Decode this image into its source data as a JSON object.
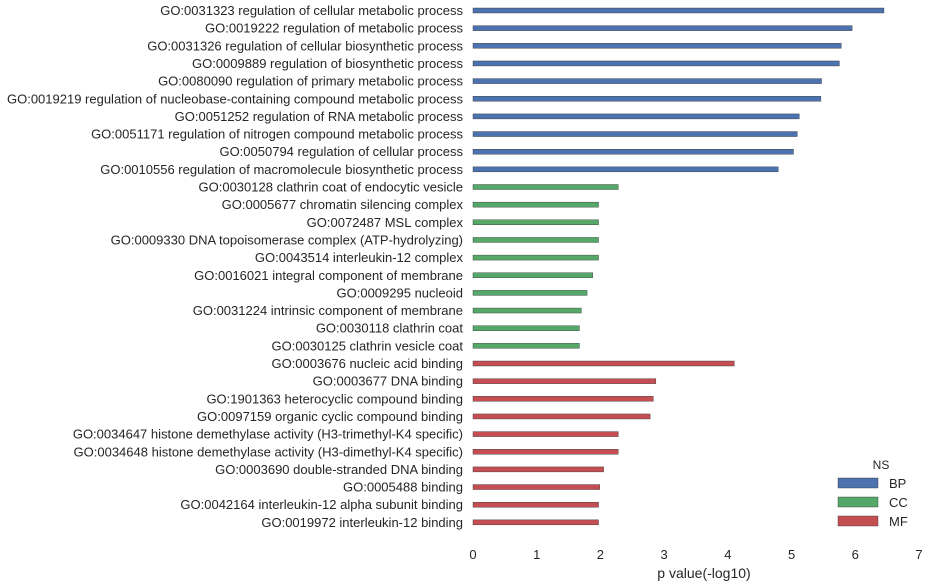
{
  "chart_data": {
    "type": "bar",
    "orientation": "horizontal",
    "xlabel": "p value(-log10)",
    "xlim": [
      0,
      7
    ],
    "xticks": [
      "0",
      "1",
      "2",
      "3",
      "4",
      "5",
      "6",
      "7"
    ],
    "grid": false,
    "legend": {
      "title": "NS",
      "placement": "lower-right",
      "entries": [
        {
          "name": "BP",
          "color": "#4c72b0"
        },
        {
          "name": "CC",
          "color": "#55a868"
        },
        {
          "name": "MF",
          "color": "#c44e52"
        }
      ]
    },
    "categories": [
      {
        "label": "GO:0031323 regulation of cellular metabolic process",
        "value": 6.45,
        "ns": "BP"
      },
      {
        "label": "GO:0019222 regulation of metabolic process",
        "value": 5.95,
        "ns": "BP"
      },
      {
        "label": "GO:0031326 regulation of cellular biosynthetic process",
        "value": 5.78,
        "ns": "BP"
      },
      {
        "label": "GO:0009889 regulation of biosynthetic process",
        "value": 5.75,
        "ns": "BP"
      },
      {
        "label": "GO:0080090 regulation of primary metabolic process",
        "value": 5.47,
        "ns": "BP"
      },
      {
        "label": "GO:0019219 regulation of nucleobase-containing compound metabolic process",
        "value": 5.46,
        "ns": "BP"
      },
      {
        "label": "GO:0051252 regulation of RNA metabolic process",
        "value": 5.12,
        "ns": "BP"
      },
      {
        "label": "GO:0051171 regulation of nitrogen compound metabolic process",
        "value": 5.09,
        "ns": "BP"
      },
      {
        "label": "GO:0050794 regulation of cellular process",
        "value": 5.03,
        "ns": "BP"
      },
      {
        "label": "GO:0010556 regulation of macromolecule biosynthetic process",
        "value": 4.79,
        "ns": "BP"
      },
      {
        "label": "GO:0030128 clathrin coat of endocytic vesicle",
        "value": 2.28,
        "ns": "CC"
      },
      {
        "label": "GO:0005677 chromatin silencing complex",
        "value": 1.97,
        "ns": "CC"
      },
      {
        "label": "GO:0072487 MSL complex",
        "value": 1.97,
        "ns": "CC"
      },
      {
        "label": "GO:0009330 DNA topoisomerase complex (ATP-hydrolyzing)",
        "value": 1.97,
        "ns": "CC"
      },
      {
        "label": "GO:0043514 interleukin-12 complex",
        "value": 1.97,
        "ns": "CC"
      },
      {
        "label": "GO:0016021 integral component of membrane",
        "value": 1.88,
        "ns": "CC"
      },
      {
        "label": "GO:0009295 nucleoid",
        "value": 1.79,
        "ns": "CC"
      },
      {
        "label": "GO:0031224 intrinsic component of membrane",
        "value": 1.7,
        "ns": "CC"
      },
      {
        "label": "GO:0030118 clathrin coat",
        "value": 1.67,
        "ns": "CC"
      },
      {
        "label": "GO:0030125 clathrin vesicle coat",
        "value": 1.67,
        "ns": "CC"
      },
      {
        "label": "GO:0003676 nucleic acid binding",
        "value": 4.1,
        "ns": "MF"
      },
      {
        "label": "GO:0003677 DNA binding",
        "value": 2.87,
        "ns": "MF"
      },
      {
        "label": "GO:1901363 heterocyclic compound binding",
        "value": 2.83,
        "ns": "MF"
      },
      {
        "label": "GO:0097159 organic cyclic compound binding",
        "value": 2.78,
        "ns": "MF"
      },
      {
        "label": "GO:0034647 histone demethylase activity (H3-trimethyl-K4 specific)",
        "value": 2.28,
        "ns": "MF"
      },
      {
        "label": "GO:0034648 histone demethylase activity (H3-dimethyl-K4 specific)",
        "value": 2.28,
        "ns": "MF"
      },
      {
        "label": "GO:0003690 double-stranded DNA binding",
        "value": 2.05,
        "ns": "MF"
      },
      {
        "label": "GO:0005488 binding",
        "value": 1.99,
        "ns": "MF"
      },
      {
        "label": "GO:0042164 interleukin-12 alpha subunit binding",
        "value": 1.97,
        "ns": "MF"
      },
      {
        "label": "GO:0019972 interleukin-12 binding",
        "value": 1.97,
        "ns": "MF"
      }
    ]
  }
}
